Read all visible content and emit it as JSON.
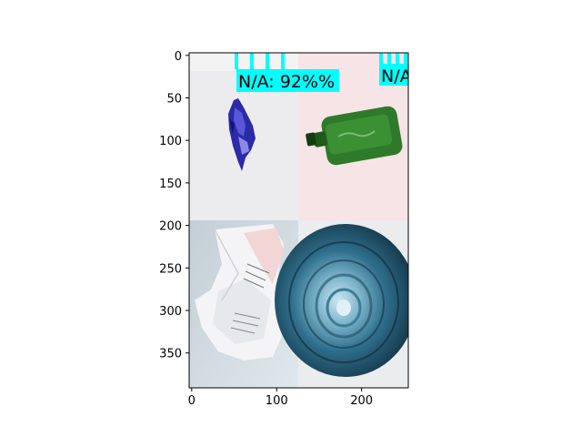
{
  "figure": {
    "x_ticks": [
      0,
      100,
      200
    ],
    "y_ticks": [
      0,
      50,
      100,
      150,
      200,
      250,
      300,
      350
    ],
    "x_range": [
      -3,
      255
    ],
    "y_range": [
      391,
      -3
    ],
    "panels": [
      {
        "name": "crushed-blue-wrapper",
        "bg": "#ebebed"
      },
      {
        "name": "green-glass-bottle",
        "bg": "#f6e6e8"
      },
      {
        "name": "crumpled-paper",
        "bg": "#cfd8dd"
      },
      {
        "name": "dark-bowl-top-view",
        "bg": "#173a4f"
      }
    ],
    "detections": [
      {
        "label": "N/A: 92%%",
        "color": "#00ffff"
      },
      {
        "label": "N/A",
        "color": "#00ffff"
      }
    ]
  }
}
